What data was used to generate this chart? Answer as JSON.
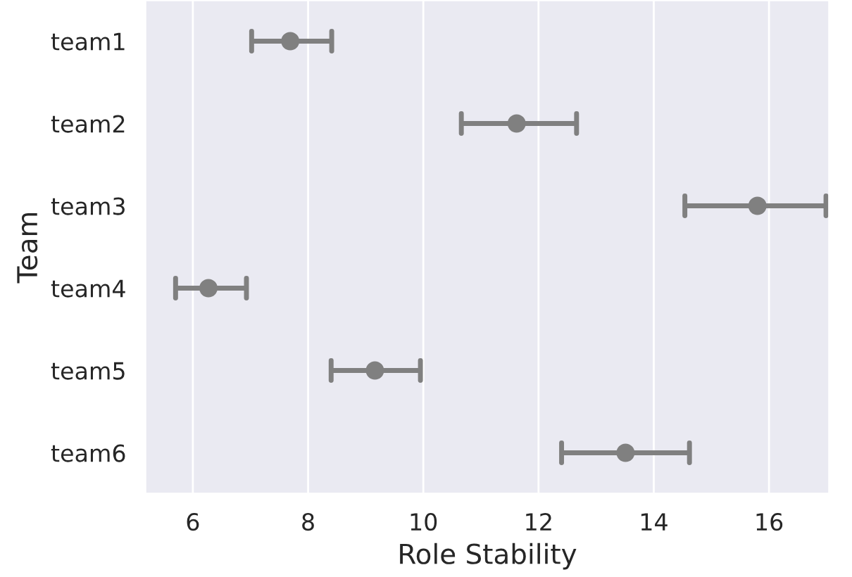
{
  "chart_data": {
    "type": "scatter",
    "orientation": "horizontal",
    "xlabel": "Role Stability",
    "ylabel": "Team",
    "categories": [
      "team1",
      "team2",
      "team3",
      "team4",
      "team5",
      "team6"
    ],
    "values": [
      7.69,
      11.62,
      15.8,
      6.27,
      9.16,
      13.51
    ],
    "errors": [
      [
        7.02,
        8.41
      ],
      [
        10.66,
        12.66
      ],
      [
        14.54,
        16.99
      ],
      [
        5.7,
        6.93
      ],
      [
        8.4,
        9.95
      ],
      [
        12.4,
        14.62
      ]
    ],
    "color": "#808080",
    "marker": "circle",
    "xlim": [
      5.17,
      17.05
    ],
    "xticks": [
      6,
      8,
      10,
      12,
      14,
      16
    ],
    "grid": "x"
  }
}
